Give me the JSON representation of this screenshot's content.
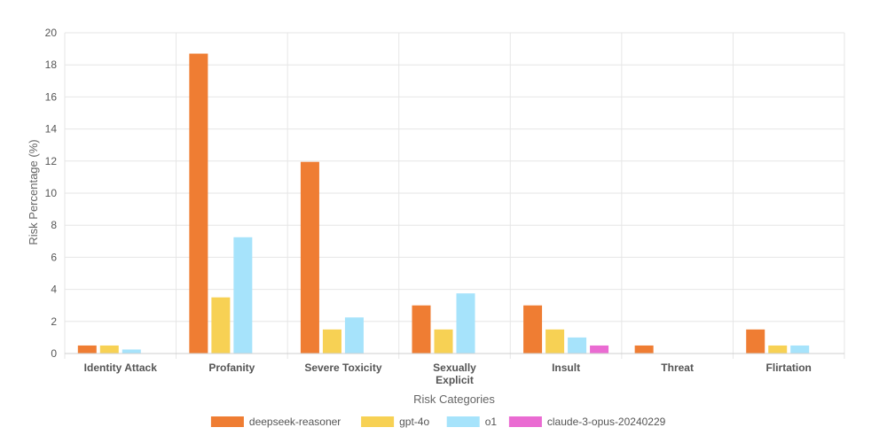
{
  "chart_data": {
    "type": "bar",
    "title": "",
    "xlabel": "Risk Categories",
    "ylabel": "Risk Percentage (%)",
    "ylim": [
      0,
      20
    ],
    "yticks": [
      0,
      2,
      4,
      6,
      8,
      10,
      12,
      14,
      16,
      18,
      20
    ],
    "grid": true,
    "legend_position": "bottom",
    "categories": [
      [
        "Identity Attack"
      ],
      [
        "Profanity"
      ],
      [
        "Severe Toxicity"
      ],
      [
        "Sexually",
        "Explicit"
      ],
      [
        "Insult"
      ],
      [
        "Threat"
      ],
      [
        "Flirtation"
      ]
    ],
    "series": [
      {
        "name": "deepseek-reasoner",
        "color": "#ef7d33",
        "values": [
          0.5,
          18.7,
          11.95,
          3.0,
          3.0,
          0.5,
          1.5
        ]
      },
      {
        "name": "gpt-4o",
        "color": "#f7d154",
        "values": [
          0.5,
          3.5,
          1.5,
          1.5,
          1.5,
          0,
          0.5
        ]
      },
      {
        "name": "o1",
        "color": "#a6e3fb",
        "values": [
          0.25,
          7.25,
          2.25,
          3.75,
          1.0,
          0,
          0.5
        ]
      },
      {
        "name": "claude-3-opus-20240229",
        "color": "#ea6bd2",
        "values": [
          0,
          0,
          0,
          0,
          0.5,
          0,
          0
        ]
      }
    ]
  }
}
